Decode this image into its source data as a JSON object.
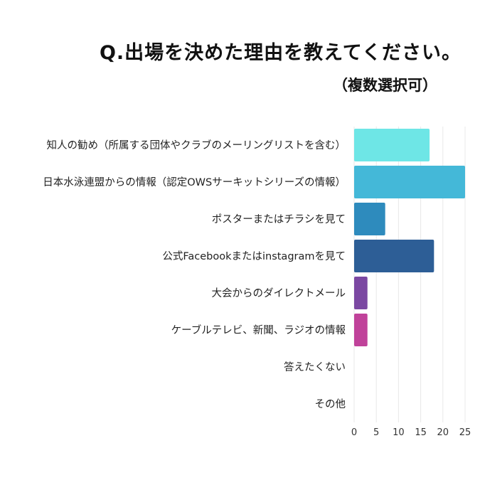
{
  "chart_data": {
    "type": "bar",
    "orientation": "horizontal",
    "title": "Q.出場を決めた理由を教えてください。",
    "subtitle": "（複数選択可）",
    "categories": [
      "知人の勧め（所属する団体やクラブのメーリングリストを含む）",
      "日本水泳連盟からの情報（認定OWSサーキットシリーズの情報）",
      "ポスターまたはチラシを見て",
      "公式Facebookまたはinstagramを見て",
      "大会からのダイレクトメール",
      "ケーブルテレビ、新聞、ラジオの情報",
      "答えたくない",
      "その他"
    ],
    "values": [
      17,
      25,
      7,
      18,
      3,
      3,
      0,
      0
    ],
    "colors": [
      "#6ee6e6",
      "#44b8d8",
      "#2e8bbd",
      "#2d5e96",
      "#7b48a2",
      "#c0429a",
      "#999999",
      "#999999"
    ],
    "xlim": [
      0,
      25
    ],
    "xticks": [
      0,
      5,
      10,
      15,
      20,
      25
    ],
    "grid": true,
    "xlabel": "",
    "ylabel": ""
  }
}
